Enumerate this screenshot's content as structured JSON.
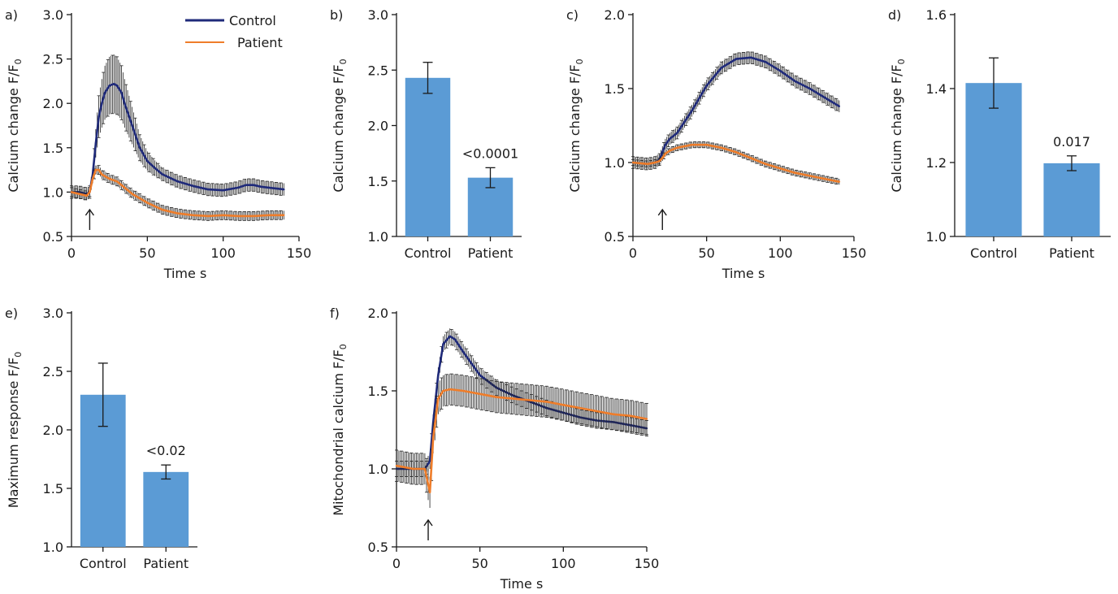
{
  "colors": {
    "control": "#1f2a7a",
    "patient": "#ef7d2a",
    "bar": "#5b9bd5",
    "axis": "#1a1a1a"
  },
  "legend": {
    "control": "Control",
    "patient": "Patient"
  },
  "chart_data": [
    {
      "panel": "a)",
      "type": "line",
      "xlabel": "Time s",
      "ylabel": "Calcium change F/F0",
      "xlim": [
        0,
        150
      ],
      "ylim": [
        0.5,
        3.0
      ],
      "xticks": [
        0,
        50,
        100,
        150
      ],
      "yticks": [
        0.5,
        1.0,
        1.5,
        2.0,
        2.5,
        3.0
      ],
      "arrow_x": 12,
      "legend": "top-right",
      "grid": false,
      "series": [
        {
          "name": "Control",
          "x": [
            0,
            5,
            10,
            12,
            14,
            16,
            18,
            20,
            22,
            25,
            28,
            30,
            33,
            35,
            40,
            45,
            50,
            55,
            60,
            70,
            80,
            90,
            100,
            110,
            115,
            120,
            125,
            130,
            140
          ],
          "y": [
            1.0,
            1.0,
            0.98,
            1.0,
            1.2,
            1.55,
            1.85,
            2.0,
            2.12,
            2.2,
            2.22,
            2.2,
            2.12,
            2.0,
            1.75,
            1.5,
            1.35,
            1.27,
            1.2,
            1.12,
            1.07,
            1.03,
            1.02,
            1.05,
            1.08,
            1.08,
            1.06,
            1.05,
            1.03
          ],
          "err": 0.07,
          "err_peak": 0.33
        },
        {
          "name": "Patient",
          "x": [
            0,
            5,
            10,
            12,
            14,
            16,
            18,
            20,
            25,
            30,
            35,
            40,
            50,
            60,
            70,
            80,
            90,
            100,
            110,
            120,
            130,
            140
          ],
          "y": [
            1.0,
            0.98,
            0.96,
            1.0,
            1.15,
            1.25,
            1.25,
            1.2,
            1.15,
            1.12,
            1.05,
            0.98,
            0.88,
            0.8,
            0.76,
            0.74,
            0.73,
            0.74,
            0.73,
            0.73,
            0.74,
            0.74
          ],
          "err": 0.05
        }
      ]
    },
    {
      "panel": "b)",
      "type": "bar",
      "ylabel": "Calcium change F/F0",
      "ylim": [
        1.0,
        3.0
      ],
      "yticks": [
        1.0,
        1.5,
        2.0,
        2.5,
        3.0
      ],
      "categories": [
        "Control",
        "Patient"
      ],
      "values": [
        2.43,
        1.53
      ],
      "errors": [
        0.14,
        0.09
      ],
      "annotations": [
        "",
        "<0.0001"
      ]
    },
    {
      "panel": "c)",
      "type": "line",
      "xlabel": "Time s",
      "ylabel": "Calcium change F/F0",
      "xlim": [
        0,
        150
      ],
      "ylim": [
        0.5,
        2.0
      ],
      "xticks": [
        0,
        50,
        100,
        150
      ],
      "yticks": [
        0.5,
        1.0,
        1.5,
        2.0
      ],
      "arrow_x": 20,
      "grid": false,
      "series": [
        {
          "name": "Control",
          "x": [
            0,
            10,
            15,
            18,
            20,
            22,
            25,
            30,
            40,
            50,
            60,
            70,
            80,
            90,
            100,
            110,
            120,
            130,
            140
          ],
          "y": [
            1.0,
            0.99,
            1.0,
            1.02,
            1.07,
            1.12,
            1.16,
            1.2,
            1.35,
            1.52,
            1.64,
            1.7,
            1.71,
            1.68,
            1.62,
            1.55,
            1.5,
            1.44,
            1.38
          ],
          "err": 0.04
        },
        {
          "name": "Patient",
          "x": [
            0,
            10,
            15,
            18,
            20,
            22,
            25,
            30,
            40,
            50,
            60,
            70,
            80,
            90,
            100,
            110,
            120,
            130,
            140
          ],
          "y": [
            1.0,
            0.99,
            1.0,
            1.01,
            1.03,
            1.06,
            1.08,
            1.1,
            1.12,
            1.12,
            1.1,
            1.07,
            1.03,
            0.99,
            0.96,
            0.93,
            0.91,
            0.89,
            0.87
          ],
          "err": 0.02
        }
      ]
    },
    {
      "panel": "d)",
      "type": "bar",
      "ylabel": "Calcium change F/F0",
      "ylim": [
        1.0,
        1.6
      ],
      "yticks": [
        1.0,
        1.2,
        1.4,
        1.6
      ],
      "categories": [
        "Control",
        "Patient"
      ],
      "values": [
        1.415,
        1.198
      ],
      "errors": [
        0.068,
        0.02
      ],
      "annotations": [
        "",
        "0.017"
      ]
    },
    {
      "panel": "e)",
      "type": "bar",
      "ylabel": "Maximum response F/F0",
      "ylim": [
        1.0,
        3.0
      ],
      "yticks": [
        1.0,
        1.5,
        2.0,
        2.5,
        3.0
      ],
      "categories": [
        "Control",
        "Patient"
      ],
      "values": [
        2.3,
        1.64
      ],
      "errors": [
        0.27,
        0.06
      ],
      "annotations": [
        "",
        "<0.02"
      ]
    },
    {
      "panel": "f)",
      "type": "line",
      "xlabel": "Time s",
      "ylabel": "Mitochondrial calcium F/F0",
      "xlim": [
        0,
        150
      ],
      "ylim": [
        0.5,
        2.0
      ],
      "xticks": [
        0,
        50,
        100,
        150
      ],
      "yticks": [
        0.5,
        1.0,
        1.5,
        2.0
      ],
      "arrow_x": 19,
      "grid": false,
      "series": [
        {
          "name": "Control",
          "x": [
            0,
            10,
            17,
            20,
            22,
            25,
            28,
            32,
            35,
            40,
            50,
            60,
            70,
            80,
            90,
            100,
            110,
            120,
            130,
            140,
            150
          ],
          "y": [
            1.0,
            1.0,
            1.0,
            1.05,
            1.3,
            1.6,
            1.8,
            1.85,
            1.83,
            1.75,
            1.6,
            1.52,
            1.47,
            1.43,
            1.39,
            1.36,
            1.33,
            1.31,
            1.3,
            1.28,
            1.26
          ],
          "err": 0.05
        },
        {
          "name": "Patient",
          "x": [
            0,
            10,
            17,
            19,
            20,
            22,
            25,
            28,
            32,
            40,
            50,
            60,
            70,
            80,
            90,
            100,
            110,
            120,
            130,
            140,
            150
          ],
          "y": [
            1.02,
            1.0,
            1.0,
            0.9,
            0.85,
            1.2,
            1.45,
            1.5,
            1.51,
            1.5,
            1.48,
            1.46,
            1.45,
            1.44,
            1.43,
            1.41,
            1.39,
            1.37,
            1.35,
            1.34,
            1.32
          ],
          "err": 0.1
        }
      ]
    }
  ]
}
